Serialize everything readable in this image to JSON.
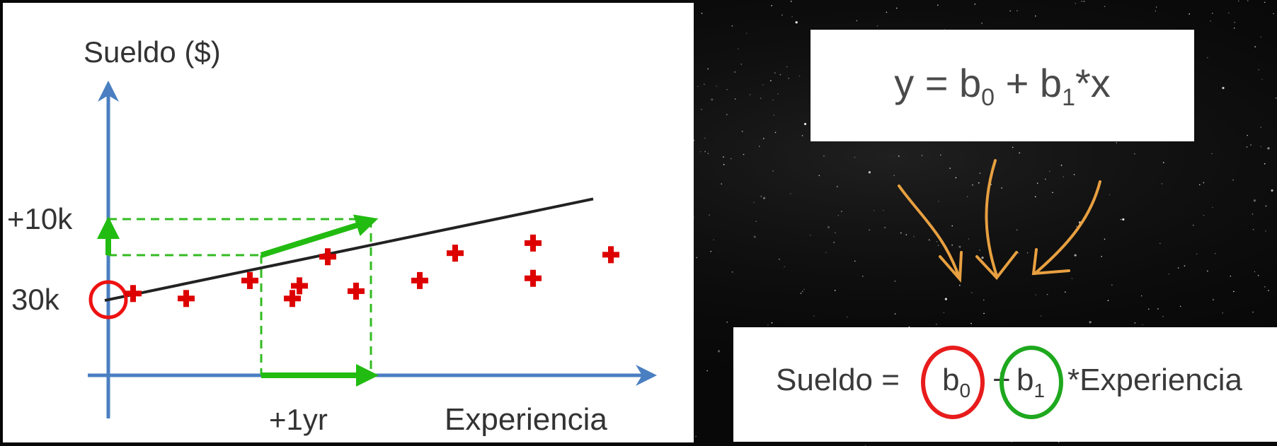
{
  "chart": {
    "y_axis_label": "Sueldo ($)",
    "x_axis_label": "Experiencia",
    "tick_10k": "+10k",
    "tick_30k": "30k",
    "tick_1yr": "+1yr",
    "points": [
      {
        "x": 0.35,
        "y": 33.6
      },
      {
        "x": 1.1,
        "y": 30.7
      },
      {
        "x": 2.0,
        "y": 41.2
      },
      {
        "x": 2.6,
        "y": 30.7
      },
      {
        "x": 2.7,
        "y": 38.1
      },
      {
        "x": 3.1,
        "y": 55.1
      },
      {
        "x": 3.5,
        "y": 35.0
      },
      {
        "x": 4.4,
        "y": 41.2
      },
      {
        "x": 4.9,
        "y": 57.2
      },
      {
        "x": 6.0,
        "y": 42.5
      },
      {
        "x": 6.0,
        "y": 63.1
      },
      {
        "x": 7.1,
        "y": 56.3
      }
    ],
    "line": {
      "intercept": 30,
      "slope": 4.3
    },
    "intercept_label_value": 30,
    "colors": {
      "axis": "#4a7fc1",
      "points": "#dd0000",
      "line": "#222222",
      "step": "#22bb11",
      "dash": "#33bb22",
      "ring": "#ee1111"
    }
  },
  "formula": {
    "prefix": "y = b",
    "sub0": "0",
    "mid": " + b",
    "sub1": "1",
    "suffix": "*x"
  },
  "equation": {
    "lhs": "Sueldo =",
    "b": "b",
    "sub0": "0",
    "plus": "+",
    "sub1": "1",
    "rhs": "*Experiencia",
    "colors": {
      "b0_ring": "#e81c1c",
      "b1_ring": "#1ea81e"
    }
  },
  "colors": {
    "arrows": "#e8a040"
  }
}
